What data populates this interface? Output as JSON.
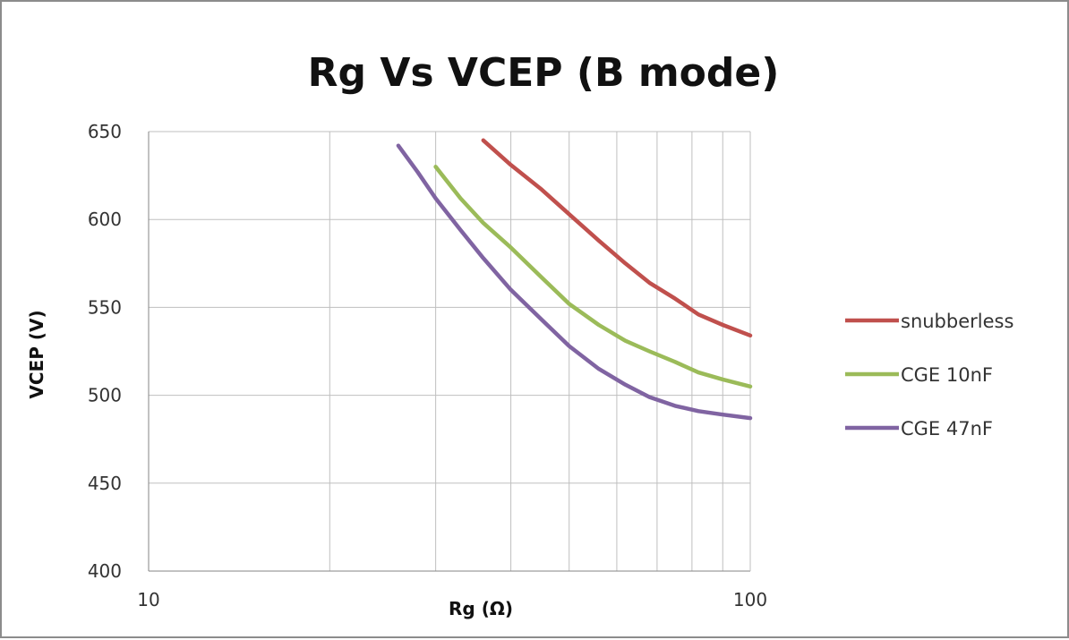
{
  "chart_data": {
    "type": "line",
    "title": "Rg Vs VCEP (B mode)",
    "xlabel": "Rg (Ω)",
    "ylabel": "VCEP (V)",
    "x_scale": "log",
    "xlim": [
      10,
      100
    ],
    "ylim": [
      400,
      650
    ],
    "x_ticks": [
      "10",
      "100"
    ],
    "y_ticks": [
      "400",
      "450",
      "500",
      "550",
      "600",
      "650"
    ],
    "grid": true,
    "legend_position": "right",
    "series": [
      {
        "name": "snubberless",
        "color": "#c0504d",
        "x": [
          36,
          40,
          45,
          50,
          56,
          62,
          68,
          75,
          82,
          90,
          100
        ],
        "y": [
          645,
          631,
          617,
          603,
          588,
          575,
          564,
          555,
          546,
          540,
          534
        ]
      },
      {
        "name": "CGE 10nF",
        "color": "#9bbb59",
        "x": [
          30,
          33,
          36,
          40,
          45,
          50,
          56,
          62,
          68,
          75,
          82,
          90,
          100
        ],
        "y": [
          630,
          612,
          598,
          584,
          567,
          552,
          540,
          531,
          525,
          519,
          513,
          509,
          505
        ]
      },
      {
        "name": "CGE 47nF",
        "color": "#8064a2",
        "x": [
          26,
          28,
          30,
          33,
          36,
          40,
          45,
          50,
          56,
          62,
          68,
          75,
          82,
          90,
          100
        ],
        "y": [
          642,
          627,
          612,
          594,
          578,
          560,
          543,
          528,
          515,
          506,
          499,
          494,
          491,
          489,
          487
        ]
      }
    ]
  }
}
